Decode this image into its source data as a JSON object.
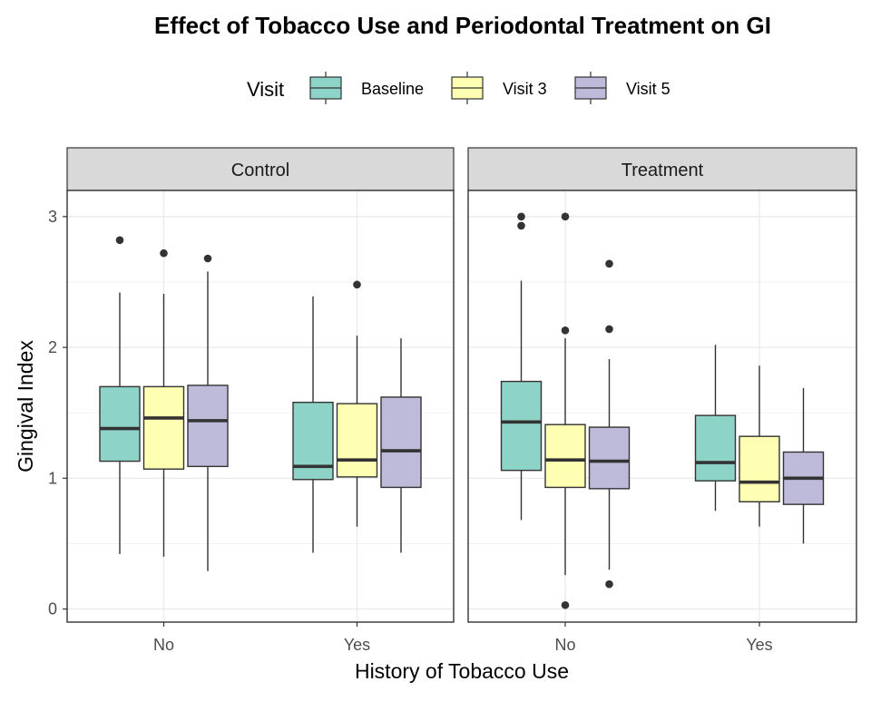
{
  "chart_data": {
    "type": "boxplot",
    "title": "Effect of Tobacco Use and Periodontal Treatment on GI",
    "xlabel": "History of Tobacco Use",
    "ylabel": "Gingival Index",
    "ylim": [
      -0.1,
      3.2
    ],
    "y_ticks": [
      0,
      1,
      2,
      3
    ],
    "categories": [
      "No",
      "Yes"
    ],
    "legend": {
      "title": "Visit",
      "position": "top",
      "items": [
        {
          "name": "Baseline",
          "color": "#8dd3c7"
        },
        {
          "name": "Visit 3",
          "color": "#ffffb3"
        },
        {
          "name": "Visit 5",
          "color": "#bebada"
        }
      ]
    },
    "grid": true,
    "panels": [
      {
        "name": "Control",
        "groups": [
          {
            "category": "No",
            "boxes": [
              {
                "visit": "Baseline",
                "low": 0.42,
                "q1": 1.13,
                "median": 1.38,
                "q3": 1.7,
                "high": 2.42,
                "outliers": [
                  2.82
                ]
              },
              {
                "visit": "Visit 3",
                "low": 0.4,
                "q1": 1.07,
                "median": 1.46,
                "q3": 1.7,
                "high": 2.41,
                "outliers": [
                  2.72
                ]
              },
              {
                "visit": "Visit 5",
                "low": 0.29,
                "q1": 1.09,
                "median": 1.44,
                "q3": 1.71,
                "high": 2.58,
                "outliers": [
                  2.68
                ]
              }
            ]
          },
          {
            "category": "Yes",
            "boxes": [
              {
                "visit": "Baseline",
                "low": 0.43,
                "q1": 0.99,
                "median": 1.09,
                "q3": 1.58,
                "high": 2.39,
                "outliers": []
              },
              {
                "visit": "Visit 3",
                "low": 0.63,
                "q1": 1.01,
                "median": 1.14,
                "q3": 1.57,
                "high": 2.09,
                "outliers": [
                  2.48
                ]
              },
              {
                "visit": "Visit 5",
                "low": 0.43,
                "q1": 0.93,
                "median": 1.21,
                "q3": 1.62,
                "high": 2.07,
                "outliers": []
              }
            ]
          }
        ]
      },
      {
        "name": "Treatment",
        "groups": [
          {
            "category": "No",
            "boxes": [
              {
                "visit": "Baseline",
                "low": 0.68,
                "q1": 1.06,
                "median": 1.43,
                "q3": 1.74,
                "high": 2.51,
                "outliers": [
                  3.0,
                  2.93
                ]
              },
              {
                "visit": "Visit 3",
                "low": 0.26,
                "q1": 0.93,
                "median": 1.14,
                "q3": 1.41,
                "high": 2.07,
                "outliers": [
                  3.0,
                  2.13,
                  0.03
                ]
              },
              {
                "visit": "Visit 5",
                "low": 0.3,
                "q1": 0.92,
                "median": 1.13,
                "q3": 1.39,
                "high": 1.91,
                "outliers": [
                  2.64,
                  2.14,
                  0.19
                ]
              }
            ]
          },
          {
            "category": "Yes",
            "boxes": [
              {
                "visit": "Baseline",
                "low": 0.75,
                "q1": 0.98,
                "median": 1.12,
                "q3": 1.48,
                "high": 2.02,
                "outliers": []
              },
              {
                "visit": "Visit 3",
                "low": 0.63,
                "q1": 0.82,
                "median": 0.97,
                "q3": 1.32,
                "high": 1.86,
                "outliers": []
              },
              {
                "visit": "Visit 5",
                "low": 0.5,
                "q1": 0.8,
                "median": 1.0,
                "q3": 1.2,
                "high": 1.69,
                "outliers": []
              }
            ]
          }
        ]
      }
    ]
  }
}
